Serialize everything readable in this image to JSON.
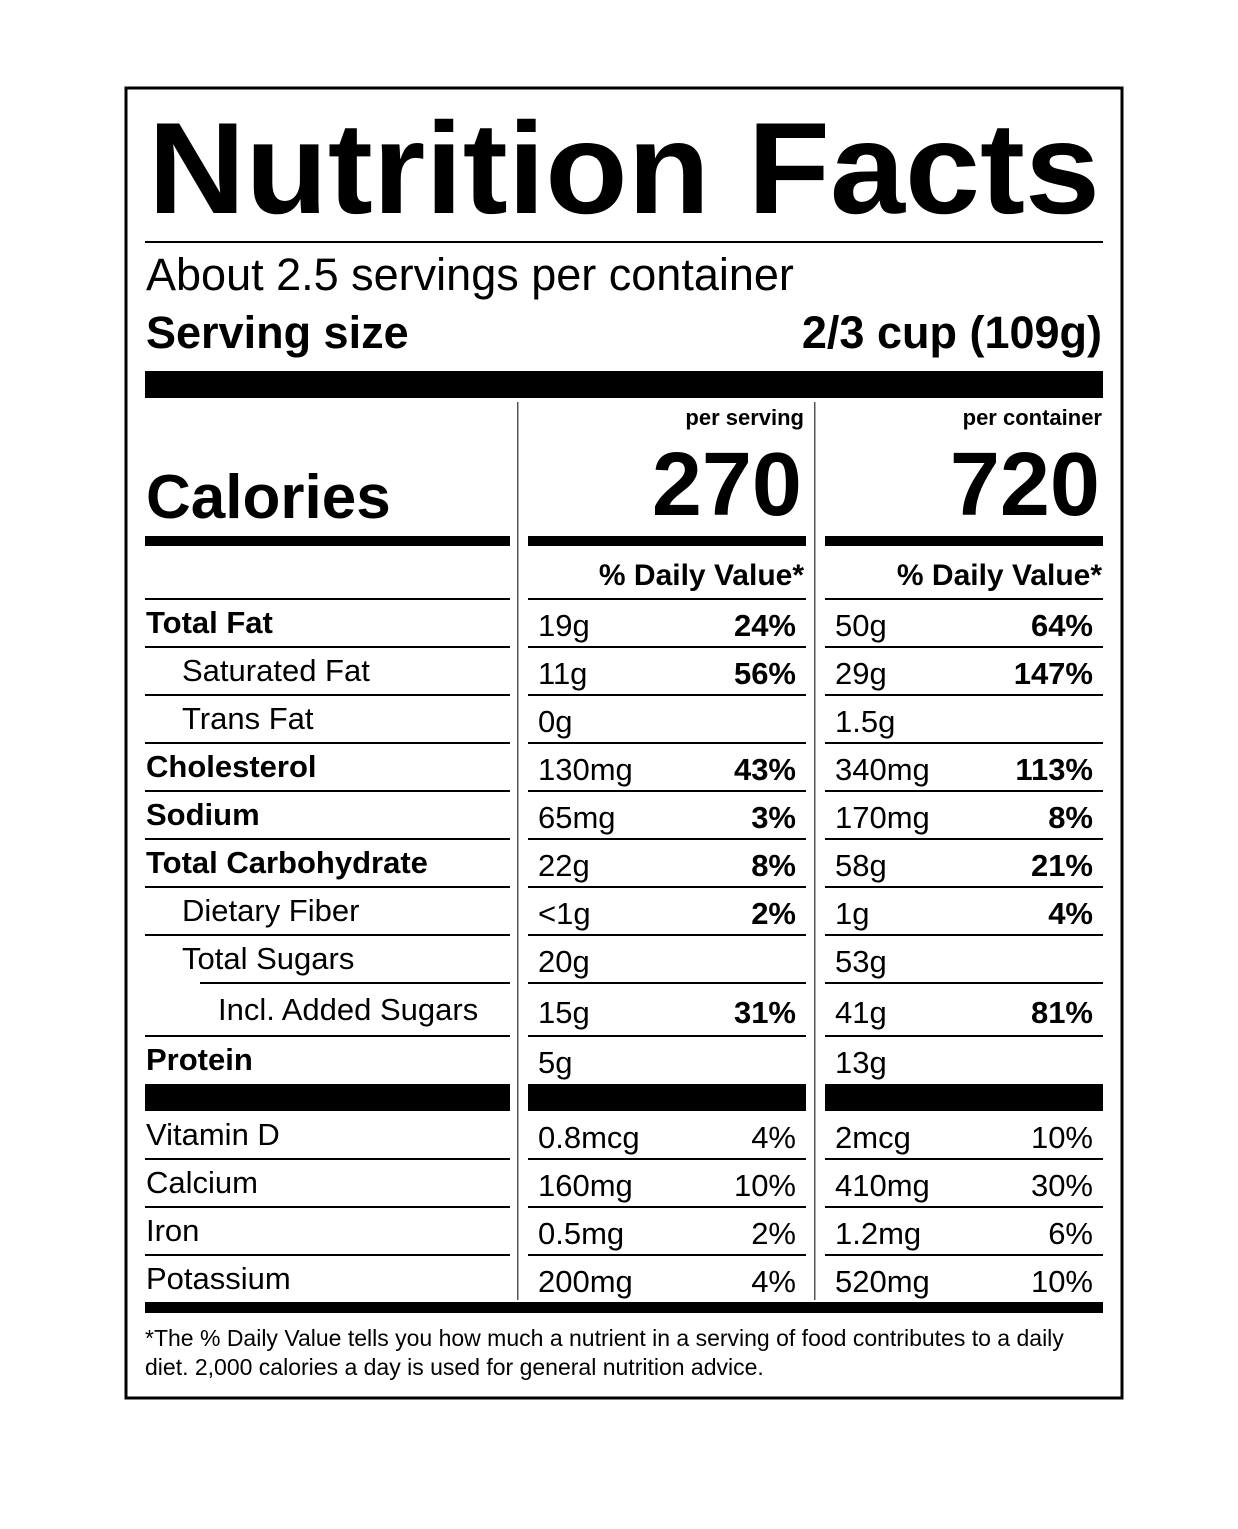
{
  "title": "Nutrition Facts",
  "servings": "About 2.5 servings per container",
  "serving_size": {
    "label": "Serving size",
    "value": "2/3 cup (109g)"
  },
  "columns": [
    "per serving",
    "per container"
  ],
  "calories": {
    "label": "Calories",
    "values": [
      270,
      720
    ]
  },
  "dv_header": "% Daily Value*",
  "nutrients": [
    {
      "name": "Total Fat",
      "bold": true,
      "indent": 0,
      "serving": [
        "19g",
        "24%"
      ],
      "container": [
        "50g",
        "64%"
      ]
    },
    {
      "name": "Saturated Fat",
      "bold": false,
      "indent": 1,
      "serving": [
        "11g",
        "56%"
      ],
      "container": [
        "29g",
        "147%"
      ]
    },
    {
      "name": "Trans Fat",
      "bold": false,
      "indent": 1,
      "serving": [
        "0g"
      ],
      "container": [
        "1.5g"
      ]
    },
    {
      "name": "Cholesterol",
      "bold": true,
      "indent": 0,
      "serving": [
        "130mg",
        "43%"
      ],
      "container": [
        "340mg",
        "113%"
      ]
    },
    {
      "name": "Sodium",
      "bold": true,
      "indent": 0,
      "serving": [
        "65mg",
        "3%"
      ],
      "container": [
        "170mg",
        "8%"
      ]
    },
    {
      "name": "Total Carbohydrate",
      "bold": true,
      "indent": 0,
      "serving": [
        "22g",
        "8%"
      ],
      "container": [
        "58g",
        "21%"
      ]
    },
    {
      "name": "Dietary Fiber",
      "bold": false,
      "indent": 1,
      "serving": [
        "<1g",
        "2%"
      ],
      "container": [
        "1g",
        "4%"
      ]
    },
    {
      "name": "Total Sugars",
      "bold": false,
      "indent": 1,
      "serving": [
        "20g"
      ],
      "container": [
        "53g"
      ]
    },
    {
      "name": "Incl. Added Sugars",
      "bold": false,
      "indent": 2,
      "serving": [
        "15g",
        "31%"
      ],
      "container": [
        "41g",
        "81%"
      ]
    },
    {
      "name": "Protein",
      "bold": true,
      "indent": 0,
      "serving": [
        "5g"
      ],
      "container": [
        "13g"
      ]
    }
  ],
  "vitamins": [
    {
      "name": "Vitamin D",
      "serving": [
        "0.8mcg",
        "4%"
      ],
      "container": [
        "2mcg",
        "10%"
      ]
    },
    {
      "name": "Calcium",
      "serving": [
        "160mg",
        "10%"
      ],
      "container": [
        "410mg",
        "30%"
      ]
    },
    {
      "name": "Iron",
      "serving": [
        "0.5mg",
        "2%"
      ],
      "container": [
        "1.2mg",
        "6%"
      ]
    },
    {
      "name": "Potassium",
      "serving": [
        "200mg",
        "4%"
      ],
      "container": [
        "520mg",
        "10%"
      ]
    }
  ],
  "footnote": "*The % Daily Value tells you how much a nutrient in a serving of food contributes to a daily diet. 2,000 calories a day is used for general nutrition advice."
}
